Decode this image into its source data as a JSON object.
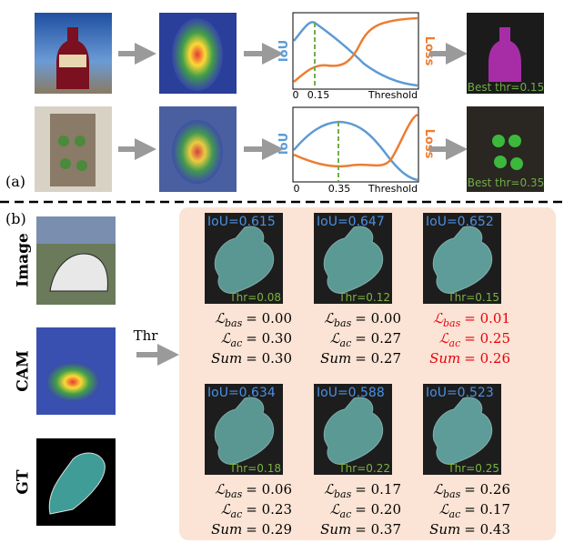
{
  "part_a": {
    "label": "(a)",
    "rows": [
      {
        "iou_axis": "IoU",
        "loss_axis": "Loss",
        "ticks": [
          "0",
          "0.15"
        ],
        "x_axis": "Threshold",
        "best": "Best thr=0.15"
      },
      {
        "iou_axis": "IoU",
        "loss_axis": "Loss",
        "ticks": [
          "0",
          "0.35"
        ],
        "x_axis": "Threshold",
        "best": "Best thr=0.35"
      }
    ]
  },
  "part_b": {
    "label": "(b)",
    "inputs": [
      "Image",
      "CAM",
      "GT"
    ],
    "arrow": "Thr",
    "cells": [
      {
        "iou": "IoU=0.615",
        "thr": "Thr=0.08",
        "highlight": false,
        "lines": [
          {
            "lhs": "ℒ",
            "sub": "bas",
            "rhs": "= 0.00"
          },
          {
            "lhs": "ℒ",
            "sub": "ac",
            "rhs": "= 0.30"
          },
          {
            "lhs": "Sum",
            "rhs": "= 0.30"
          }
        ]
      },
      {
        "iou": "IoU=0.647",
        "thr": "Thr=0.12",
        "highlight": false,
        "lines": [
          {
            "lhs": "ℒ",
            "sub": "bas",
            "rhs": "= 0.00"
          },
          {
            "lhs": "ℒ",
            "sub": "ac",
            "rhs": "= 0.27"
          },
          {
            "lhs": "Sum",
            "rhs": "= 0.27"
          }
        ]
      },
      {
        "iou": "IoU=0.652",
        "thr": "Thr=0.15",
        "highlight": true,
        "lines": [
          {
            "lhs": "ℒ",
            "sub": "bas",
            "rhs": "= 0.01"
          },
          {
            "lhs": "ℒ",
            "sub": "ac",
            "rhs": "= 0.25"
          },
          {
            "lhs": "Sum",
            "rhs": "= 0.26"
          }
        ]
      },
      {
        "iou": "IoU=0.634",
        "thr": "Thr=0.18",
        "highlight": false,
        "lines": [
          {
            "lhs": "ℒ",
            "sub": "bas",
            "rhs": "= 0.06"
          },
          {
            "lhs": "ℒ",
            "sub": "ac",
            "rhs": "= 0.23"
          },
          {
            "lhs": "Sum",
            "rhs": "= 0.29"
          }
        ]
      },
      {
        "iou": "IoU=0.588",
        "thr": "Thr=0.22",
        "highlight": false,
        "lines": [
          {
            "lhs": "ℒ",
            "sub": "bas",
            "rhs": "= 0.17"
          },
          {
            "lhs": "ℒ",
            "sub": "ac",
            "rhs": "= 0.20"
          },
          {
            "lhs": "Sum",
            "rhs": "= 0.37"
          }
        ]
      },
      {
        "iou": "IoU=0.523",
        "thr": "Thr=0.25",
        "highlight": false,
        "lines": [
          {
            "lhs": "ℒ",
            "sub": "bas",
            "rhs": "= 0.26"
          },
          {
            "lhs": "ℒ",
            "sub": "ac",
            "rhs": "= 0.17"
          },
          {
            "lhs": "Sum",
            "rhs": "= 0.43"
          }
        ]
      }
    ]
  }
}
